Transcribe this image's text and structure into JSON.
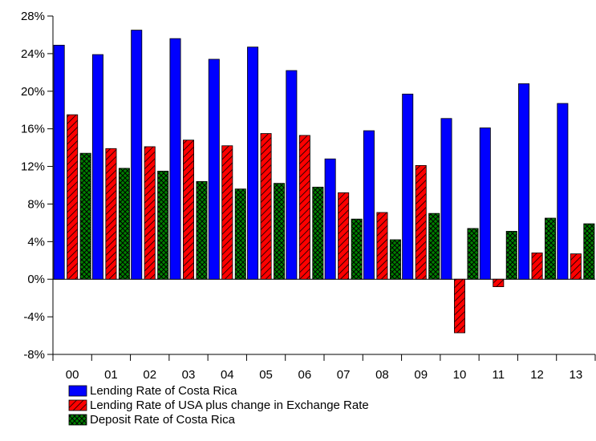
{
  "chart_data": {
    "type": "bar",
    "categories": [
      "00",
      "01",
      "02",
      "03",
      "04",
      "05",
      "06",
      "07",
      "08",
      "09",
      "10",
      "11",
      "12",
      "13"
    ],
    "ylim": [
      -8,
      28
    ],
    "yticks": [
      -8,
      -4,
      0,
      4,
      8,
      12,
      16,
      20,
      24,
      28
    ],
    "ytick_labels": [
      "-8%",
      "-4%",
      "0%",
      "4%",
      "8%",
      "12%",
      "16%",
      "20%",
      "24%",
      "28%"
    ],
    "title": "",
    "xlabel": "",
    "ylabel": "",
    "grid": false,
    "legend_position": "bottom",
    "series": [
      {
        "name": "Lending Rate of Costa Rica",
        "color": "#0000ff",
        "pattern": "solid",
        "values": [
          24.9,
          23.9,
          26.5,
          25.6,
          23.4,
          24.7,
          22.2,
          12.8,
          15.8,
          19.7,
          17.1,
          16.1,
          20.8,
          18.7
        ]
      },
      {
        "name": "Lending Rate of USA plus change in Exchange Rate",
        "color": "#ff0000",
        "pattern": "diagonal-hatch",
        "values": [
          17.5,
          13.9,
          14.1,
          14.8,
          14.2,
          15.5,
          15.3,
          9.2,
          7.1,
          12.1,
          -5.7,
          -0.8,
          2.8,
          2.7
        ]
      },
      {
        "name": "Deposit Rate of Costa Rica",
        "color": "#008000",
        "pattern": "cross-hatch",
        "values": [
          13.4,
          11.8,
          11.5,
          10.4,
          9.6,
          10.2,
          9.8,
          6.4,
          4.2,
          7.0,
          5.4,
          5.1,
          6.5,
          5.9
        ]
      }
    ]
  }
}
